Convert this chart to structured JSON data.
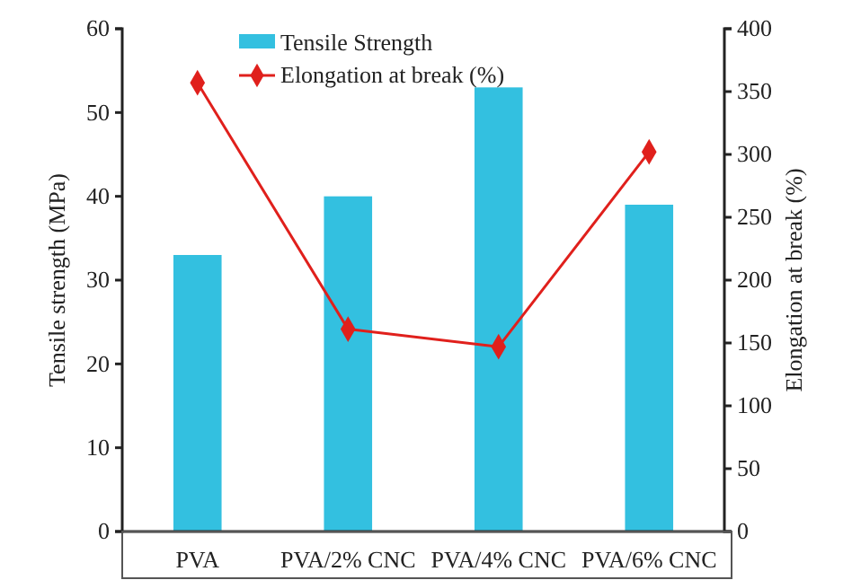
{
  "chart_data": {
    "type": "bar",
    "ylabel": "Tensile strength (MPa)",
    "y2label": "Elongation at break (%)",
    "categories": [
      "PVA",
      "PVA/2% CNC",
      "PVA/4% CNC",
      "PVA/6% CNC"
    ],
    "series": [
      {
        "name": "Tensile Strength",
        "color": "#33c0e0",
        "values": [
          33,
          40,
          53,
          39
        ]
      },
      {
        "name": "Elongation at break (%)",
        "type": "line",
        "axis": "y2",
        "color": "#e0201c",
        "marker": "diamond",
        "values": [
          357,
          161,
          147,
          302
        ]
      }
    ],
    "ylim": [
      0,
      60
    ],
    "yticks": [
      0,
      10,
      20,
      30,
      40,
      50,
      60
    ],
    "y2lim": [
      0,
      400
    ],
    "y2ticks": [
      0,
      50,
      100,
      150,
      200,
      250,
      300,
      350,
      400
    ],
    "legend": "top",
    "grid": false
  }
}
